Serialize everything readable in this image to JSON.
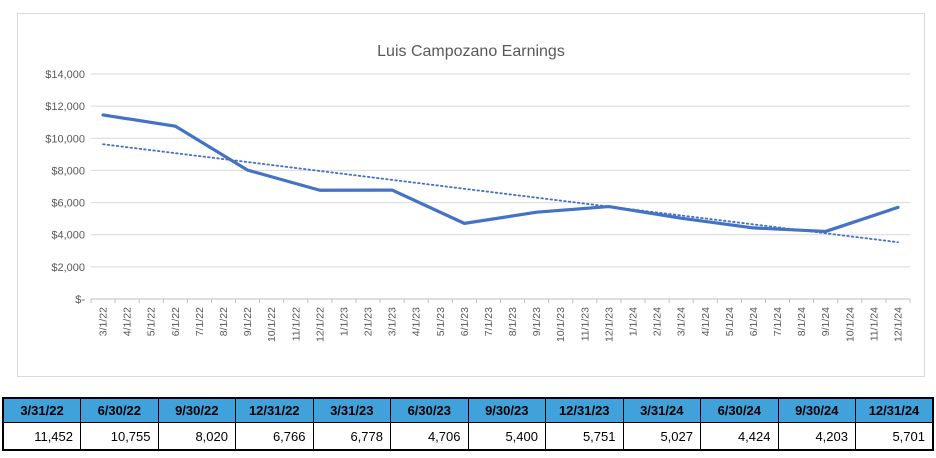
{
  "colors": {
    "series_line": "#4472c4",
    "trendline": "#4472c4",
    "gridline": "#d9d9d9",
    "axis_line": "#bfbfbf",
    "axis_label": "#595959",
    "title_text": "#595959",
    "table_header_bg": "#41a1db",
    "table_border": "#000000",
    "chart_border": "#d9d9d9"
  },
  "chart_data": {
    "type": "line",
    "title": "Luis Campozano Earnings",
    "xlabel": "",
    "ylabel": "",
    "ylim": [
      0,
      14000
    ],
    "y_tick_step": 2000,
    "y_tick_labels": [
      "$-",
      "$2,000",
      "$4,000",
      "$6,000",
      "$8,000",
      "$10,000",
      "$12,000",
      "$14,000"
    ],
    "grid": true,
    "legend_position": "none",
    "x_labels": [
      "3/1/22",
      "4/1/22",
      "5/1/22",
      "6/1/22",
      "7/1/22",
      "8/1/22",
      "9/1/22",
      "10/1/22",
      "11/1/22",
      "12/1/22",
      "1/1/23",
      "2/1/23",
      "3/1/23",
      "4/1/23",
      "5/1/23",
      "6/1/23",
      "7/1/23",
      "8/1/23",
      "9/1/23",
      "10/1/23",
      "11/1/23",
      "12/1/23",
      "1/1/24",
      "2/1/24",
      "3/1/24",
      "4/1/24",
      "5/1/24",
      "6/1/24",
      "7/1/24",
      "8/1/24",
      "9/1/24",
      "10/1/24",
      "11/1/24",
      "12/1/24"
    ],
    "series": [
      {
        "name": "Earnings",
        "style": "solid",
        "x_indices": [
          0,
          3,
          6,
          9,
          12,
          15,
          18,
          21,
          24,
          27,
          30,
          33
        ],
        "values": [
          11452,
          10755,
          8020,
          6766,
          6778,
          4706,
          5400,
          5751,
          5027,
          4424,
          4203,
          5701
        ]
      },
      {
        "name": "Linear trendline",
        "style": "dotted",
        "x_indices": [
          0,
          33
        ],
        "values": [
          9630,
          3534
        ]
      }
    ]
  },
  "table": {
    "headers": [
      "3/31/22",
      "6/30/22",
      "9/30/22",
      "12/31/22",
      "3/31/23",
      "6/30/23",
      "9/30/23",
      "12/31/23",
      "3/31/24",
      "6/30/24",
      "9/30/24",
      "12/31/24"
    ],
    "values": [
      "11,452",
      "10,755",
      "8,020",
      "6,766",
      "6,778",
      "4,706",
      "5,400",
      "5,751",
      "5,027",
      "4,424",
      "4,203",
      "5,701"
    ]
  }
}
